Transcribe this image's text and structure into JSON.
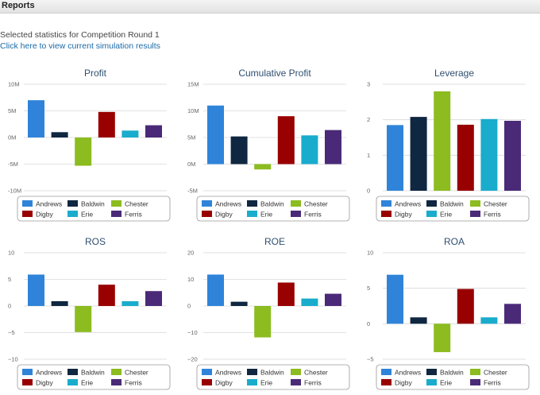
{
  "header": {
    "title": "Reports"
  },
  "intro": {
    "text": "Selected statistics for Competition Round 1",
    "link": "Click here to view current simulation results"
  },
  "colors": {
    "Andrews": "#2f84d9",
    "Baldwin": "#0f2740",
    "Chester": "#8cbc1f",
    "Digby": "#990000",
    "Erie": "#1aaccc",
    "Ferris": "#4a2a78"
  },
  "chart_data": [
    {
      "type": "bar",
      "title": "Profit",
      "categories": [
        "Andrews",
        "Baldwin",
        "Chester",
        "Digby",
        "Erie",
        "Ferris"
      ],
      "values": [
        7,
        1,
        -5.3,
        4.8,
        1.3,
        2.3
      ],
      "ylim": [
        -10,
        10
      ],
      "yticks": [
        -10,
        -5,
        0,
        5,
        10
      ],
      "ytick_labels": [
        "-10M",
        "-5M",
        "0M",
        "5M",
        "10M"
      ],
      "legend": "bottom"
    },
    {
      "type": "bar",
      "title": "Cumulative Profit",
      "categories": [
        "Andrews",
        "Baldwin",
        "Chester",
        "Digby",
        "Erie",
        "Ferris"
      ],
      "values": [
        11,
        5.2,
        -1,
        9,
        5.4,
        6.4
      ],
      "ylim": [
        -5,
        15
      ],
      "yticks": [
        -5,
        0,
        5,
        10,
        15
      ],
      "ytick_labels": [
        "-5M",
        "0M",
        "5M",
        "10M",
        "15M"
      ],
      "legend": "bottom"
    },
    {
      "type": "bar",
      "title": "Leverage",
      "categories": [
        "Andrews",
        "Baldwin",
        "Chester",
        "Digby",
        "Erie",
        "Ferris"
      ],
      "values": [
        1.85,
        2.08,
        2.8,
        1.86,
        2.02,
        1.97
      ],
      "ylim": [
        0,
        3
      ],
      "yticks": [
        0,
        1,
        2,
        3
      ],
      "ytick_labels": [
        "0",
        "1",
        "2",
        "3"
      ],
      "legend": "bottom"
    },
    {
      "type": "bar",
      "title": "ROS",
      "categories": [
        "Andrews",
        "Baldwin",
        "Chester",
        "Digby",
        "Erie",
        "Ferris"
      ],
      "values": [
        5.9,
        0.9,
        -4.9,
        4,
        0.9,
        2.8
      ],
      "ylim": [
        -10,
        10
      ],
      "yticks": [
        -10,
        -5,
        0,
        5,
        10
      ],
      "ytick_labels": [
        "−10",
        "−5",
        "0",
        "5",
        "10"
      ],
      "legend": "bottom"
    },
    {
      "type": "bar",
      "title": "ROE",
      "categories": [
        "Andrews",
        "Baldwin",
        "Chester",
        "Digby",
        "Erie",
        "Ferris"
      ],
      "values": [
        11.8,
        1.6,
        -11.8,
        8.8,
        2.8,
        4.6
      ],
      "ylim": [
        -20,
        20
      ],
      "yticks": [
        -20,
        -10,
        0,
        10,
        20
      ],
      "ytick_labels": [
        "−20",
        "−10",
        "0",
        "10",
        "20"
      ],
      "legend": "bottom"
    },
    {
      "type": "bar",
      "title": "ROA",
      "categories": [
        "Andrews",
        "Baldwin",
        "Chester",
        "Digby",
        "Erie",
        "Ferris"
      ],
      "values": [
        6.9,
        0.9,
        -4,
        4.9,
        0.9,
        2.8
      ],
      "ylim": [
        -5,
        10
      ],
      "yticks": [
        -5,
        0,
        5,
        10
      ],
      "ytick_labels": [
        "−5",
        "0",
        "5",
        "10"
      ],
      "legend": "bottom"
    }
  ]
}
